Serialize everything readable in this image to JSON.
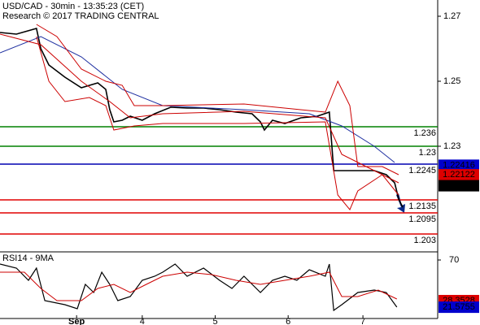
{
  "chart_data": [
    {
      "type": "line",
      "title": "USD/CAD - 30min - 13:35:23 (CET)",
      "subtitle": "Research © 2017 TRADING CENTRAL",
      "xlim": [
        0,
        120
      ],
      "ylim": [
        1.1975,
        1.275
      ],
      "yticks": [
        1.27,
        1.25,
        1.23
      ],
      "series": [
        {
          "color": "#000000",
          "width": 1.6,
          "x": [
            0,
            4.5,
            10,
            11.2,
            13.4,
            17.8,
            22.3,
            26.8,
            29,
            30.1,
            31.2,
            33.5,
            35.7,
            39,
            42.4,
            46.8,
            51.3,
            55.8,
            60.2,
            64.7,
            69.1,
            71.4,
            72.5,
            74.7,
            78.1,
            82.5,
            87,
            90.3,
            91.5,
            93.7,
            98.1,
            102.6,
            105.9,
            108.2,
            109.3,
            110.4
          ],
          "values": [
            1.265,
            1.2645,
            1.26625,
            1.26,
            1.255,
            1.25125,
            1.248,
            1.2495,
            1.2475,
            1.24125,
            1.2375,
            1.238,
            1.23925,
            1.238,
            1.24,
            1.242,
            1.24175,
            1.24175,
            1.24125,
            1.2405,
            1.24,
            1.2375,
            1.235,
            1.238,
            1.237,
            1.23875,
            1.23925,
            1.2405,
            1.2225,
            1.2225,
            1.2225,
            1.2225,
            1.22125,
            1.21875,
            1.21375,
            1.21125
          ]
        },
        {
          "color": "#1e2fa0",
          "width": 1,
          "x": [
            0,
            11.2,
            22.3,
            33.5,
            44.6,
            66.9,
            84.8,
            93.7,
            102.6,
            108.2
          ],
          "values": [
            1.25875,
            1.26375,
            1.2575,
            1.2475,
            1.2425,
            1.24125,
            1.24,
            1.23625,
            1.23,
            1.225
          ]
        },
        {
          "color": "#cc0000",
          "width": 1,
          "x": [
            0,
            11.2,
            22.3,
            30.1,
            35.7,
            44.6,
            66.9,
            89.2,
            93.7,
            102.6,
            109.3
          ],
          "values": [
            1.2645,
            1.26125,
            1.25,
            1.24375,
            1.23875,
            1.24,
            1.24075,
            1.23875,
            1.2275,
            1.2225,
            1.21875
          ]
        },
        {
          "color": "#cc0000",
          "width": 1,
          "x": [
            10,
            15.6,
            22.3,
            29,
            33.5,
            36.8,
            44.6,
            66.9,
            89.2,
            92.6,
            95.9,
            98.1,
            104.8,
            109.3
          ],
          "values": [
            1.2675,
            1.26375,
            1.25375,
            1.25,
            1.24875,
            1.2425,
            1.2425,
            1.243,
            1.2405,
            1.25,
            1.2425,
            1.22375,
            1.22375,
            1.22125
          ]
        },
        {
          "color": "#cc0000",
          "width": 1,
          "x": [
            10,
            13.4,
            17.8,
            24.5,
            29,
            31.2,
            36.8,
            44.6,
            66.9,
            89.2,
            92.6,
            95.9,
            98.1,
            104.8,
            109.3
          ],
          "values": [
            1.26375,
            1.25,
            1.24375,
            1.245,
            1.2425,
            1.235,
            1.23625,
            1.237,
            1.237,
            1.2375,
            1.215,
            1.2105,
            1.21625,
            1.22125,
            1.215
          ]
        }
      ],
      "levels": [
        {
          "value": 1.236,
          "color": "#008000"
        },
        {
          "value": 1.23,
          "color": "#008000"
        },
        {
          "value": 1.2245,
          "color": "#0000b0"
        },
        {
          "value": 1.2135,
          "color": "#e00000"
        },
        {
          "value": 1.2095,
          "color": "#e00000"
        },
        {
          "value": 1.203,
          "color": "#e00000"
        }
      ],
      "price_labels": [
        {
          "value": 1.22416,
          "color": "#0000cc"
        },
        {
          "value": 1.22122,
          "color": "#dd0000"
        },
        {
          "value": 1.21785,
          "color": "#000000"
        }
      ]
    },
    {
      "type": "line",
      "title": "RSI14 - 9MA",
      "xlim": [
        0,
        120
      ],
      "ylim": [
        10,
        80
      ],
      "yticks": [
        70
      ],
      "xticks": [
        {
          "value": 21,
          "label": "Sep"
        },
        {
          "value": 39,
          "label": "4"
        },
        {
          "value": 59,
          "label": "5"
        },
        {
          "value": 79,
          "label": "6"
        },
        {
          "value": 99.5,
          "label": "7"
        }
      ],
      "series": [
        {
          "color": "#000000",
          "width": 1.2,
          "x": [
            0,
            4.5,
            7.8,
            10,
            12.3,
            17.8,
            21.2,
            23.4,
            25.7,
            27.9,
            30.1,
            32.3,
            35.7,
            39,
            42.4,
            44.6,
            48,
            51.3,
            55.8,
            60.2,
            63.6,
            66.9,
            71.4,
            74.7,
            78.1,
            81.4,
            84.8,
            89.2,
            90.3,
            91.5,
            93.7,
            98.1,
            102.6,
            105.9,
            108.8
          ],
          "values": [
            65.8,
            61.7,
            49.2,
            61.7,
            28.3,
            24.2,
            20,
            45,
            36.7,
            57.5,
            45,
            28.3,
            32.5,
            49.2,
            53.3,
            57.5,
            65.8,
            53.3,
            61.7,
            49.2,
            40.8,
            53.3,
            36.7,
            49.2,
            53.3,
            49.2,
            60,
            53.3,
            65.8,
            18.3,
            24.2,
            36.7,
            39.2,
            36.7,
            21.7
          ]
        },
        {
          "color": "#cc0000",
          "width": 1,
          "x": [
            0,
            6.7,
            11.2,
            15.6,
            22.3,
            26.8,
            31.2,
            35.7,
            40.1,
            44.6,
            51.3,
            58,
            64.7,
            71.4,
            78.1,
            84.8,
            90.3,
            93.7,
            98.1,
            103.7,
            108.8
          ],
          "values": [
            57.5,
            57.5,
            40.8,
            28.3,
            28.3,
            40.8,
            45,
            36.7,
            45,
            53.3,
            57.5,
            55,
            49.2,
            45,
            49.2,
            53.3,
            57.5,
            32.5,
            32.5,
            39.2,
            30
          ]
        }
      ],
      "value_labels": [
        {
          "value": 28.3528,
          "color": "#dd0000"
        },
        {
          "value": 21.5755,
          "color": "#0000cc"
        }
      ]
    }
  ]
}
